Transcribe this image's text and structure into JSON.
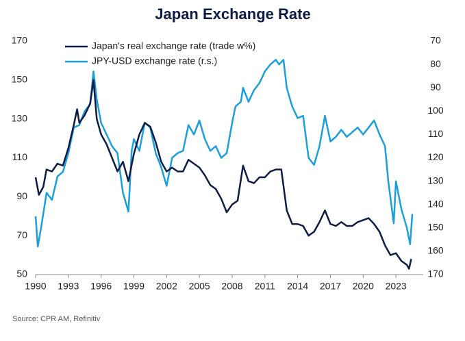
{
  "chart_data": {
    "type": "line",
    "title": "Japan Exchange Rate",
    "source": "Source: CPR AM, Refinitiv",
    "xlim": [
      1990,
      2025.5
    ],
    "xticks": [
      1990,
      1993,
      1996,
      1999,
      2002,
      2005,
      2008,
      2011,
      2014,
      2017,
      2020,
      2023
    ],
    "ylim": [
      50,
      170
    ],
    "yticks": [
      50,
      70,
      90,
      110,
      130,
      150,
      170
    ],
    "y2lim": [
      170,
      70
    ],
    "y2ticks": [
      70,
      80,
      90,
      100,
      110,
      120,
      130,
      140,
      150,
      160,
      170
    ],
    "legend": "upper-left",
    "series": [
      {
        "name": "Japan's real exchange rate (trade w%)",
        "color": "#0d1b45",
        "x": [
          1990,
          1990.3,
          1990.7,
          1991,
          1991.5,
          1992,
          1992.5,
          1993,
          1993.5,
          1993.8,
          1994,
          1994.5,
          1995,
          1995.3,
          1995.6,
          1996,
          1996.5,
          1997,
          1997.5,
          1998,
          1998.5,
          1999,
          1999.5,
          2000,
          2000.5,
          2001,
          2001.5,
          2002,
          2002.5,
          2003,
          2003.5,
          2004,
          2004.5,
          2005,
          2005.5,
          2006,
          2006.5,
          2007,
          2007.5,
          2008,
          2008.5,
          2009,
          2009.5,
          2010,
          2010.5,
          2011,
          2011.5,
          2012,
          2012.5,
          2013,
          2013.5,
          2014,
          2014.5,
          2015,
          2015.5,
          2016,
          2016.5,
          2017,
          2017.5,
          2018,
          2018.5,
          2019,
          2019.5,
          2020,
          2020.5,
          2021,
          2021.5,
          2022,
          2022.5,
          2023,
          2023.5,
          2024,
          2024.2,
          2024.4
        ],
        "values": [
          100,
          91,
          95,
          104,
          103,
          107,
          106,
          115,
          127,
          135,
          128,
          132,
          138,
          150,
          130,
          122,
          117,
          110,
          103,
          108,
          98,
          112,
          122,
          128,
          126,
          118,
          108,
          103,
          105,
          103,
          103,
          109,
          107,
          105,
          101,
          96,
          94,
          89,
          82,
          86,
          88,
          106,
          98,
          97,
          100,
          100,
          103,
          104,
          104,
          83,
          76,
          76,
          75,
          70,
          72,
          77,
          83,
          76,
          75,
          77,
          75,
          75,
          77,
          78,
          79,
          76,
          72,
          65,
          60,
          61,
          57,
          55,
          53,
          58
        ]
      },
      {
        "name": "JPY-USD exchange rate (r.s.)",
        "color": "#1a9fdc",
        "axis": "y2",
        "x": [
          1990,
          1990.2,
          1990.5,
          1991,
          1991.5,
          1992,
          1992.5,
          1993,
          1993.5,
          1994,
          1994.5,
          1995,
          1995.3,
          1995.6,
          1996,
          1996.5,
          1997,
          1997.5,
          1998,
          1998.5,
          1998.8,
          1999,
          1999.5,
          2000,
          2000.5,
          2001,
          2001.5,
          2002,
          2002.5,
          2003,
          2003.5,
          2004,
          2004.5,
          2005,
          2005.5,
          2006,
          2006.5,
          2007,
          2007.5,
          2008,
          2008.3,
          2008.8,
          2009,
          2009.5,
          2010,
          2010.5,
          2011,
          2011.5,
          2012,
          2012.3,
          2012.7,
          2013,
          2013.5,
          2014,
          2014.5,
          2015,
          2015.5,
          2016,
          2016.5,
          2017,
          2017.5,
          2018,
          2018.5,
          2019,
          2019.5,
          2020,
          2020.5,
          2021,
          2021.5,
          2022,
          2022.3,
          2022.8,
          2023,
          2023.5,
          2024,
          2024.3,
          2024.5
        ],
        "values": [
          145,
          158,
          150,
          135,
          138,
          128,
          126,
          118,
          107,
          106,
          100,
          97,
          83,
          95,
          105,
          110,
          115,
          118,
          135,
          143,
          117,
          112,
          117,
          105,
          107,
          118,
          124,
          132,
          120,
          118,
          117,
          106,
          110,
          104,
          112,
          117,
          115,
          120,
          118,
          105,
          98,
          96,
          90,
          96,
          91,
          88,
          83,
          80,
          78,
          80,
          78,
          90,
          98,
          103,
          102,
          120,
          123,
          115,
          102,
          113,
          111,
          108,
          111,
          109,
          107,
          110,
          107,
          104,
          110,
          115,
          130,
          148,
          130,
          142,
          150,
          157,
          144
        ]
      }
    ]
  }
}
